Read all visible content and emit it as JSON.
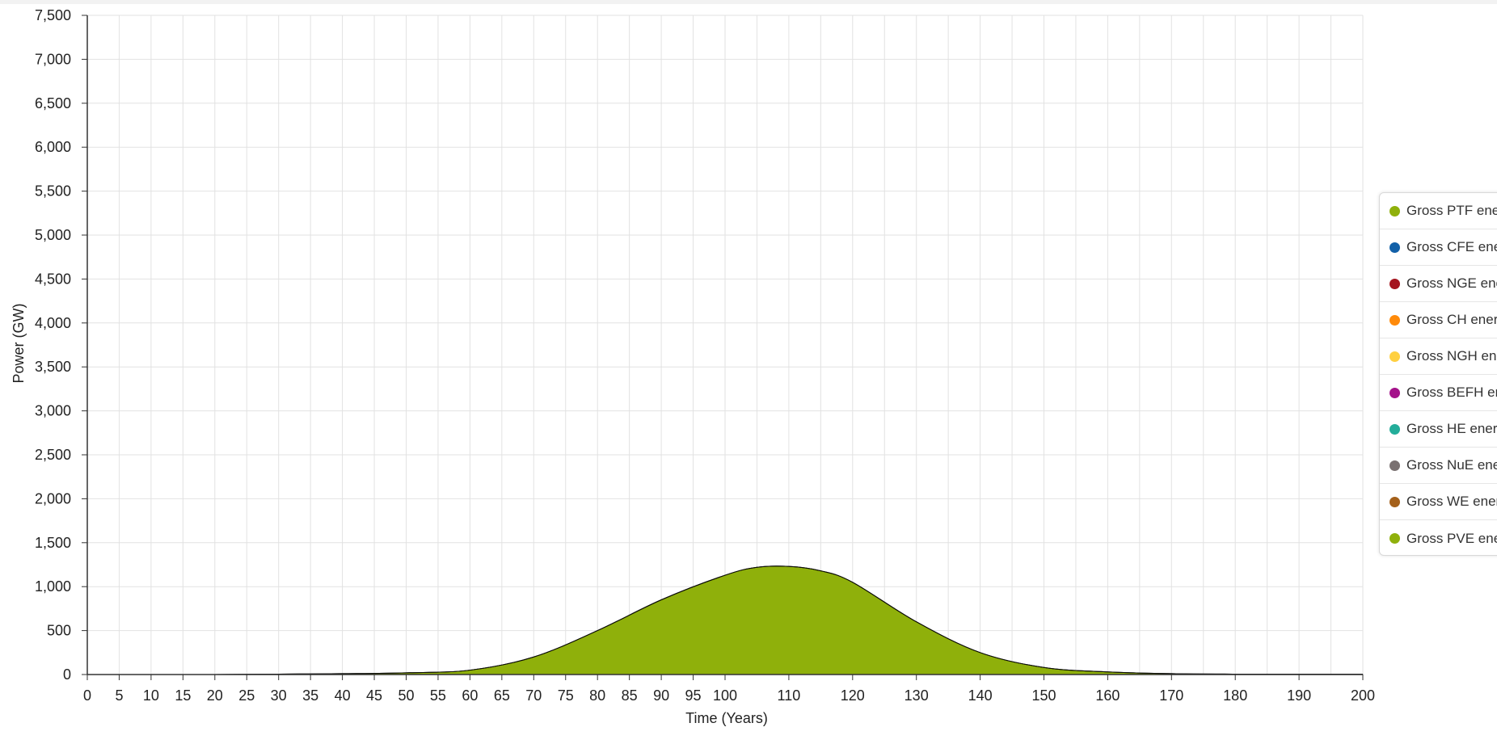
{
  "chart_data": {
    "type": "area",
    "stacked": true,
    "xlabel": "Time (Years)",
    "ylabel": "Power (GW)",
    "xlim": [
      0,
      200
    ],
    "ylim": [
      0,
      7500
    ],
    "x_ticks": [
      "0",
      "5",
      "10",
      "15",
      "20",
      "25",
      "30",
      "35",
      "40",
      "45",
      "50",
      "55",
      "60",
      "65",
      "70",
      "75",
      "80",
      "85",
      "90",
      "95",
      "100",
      "110",
      "120",
      "130",
      "140",
      "150",
      "160",
      "170",
      "180",
      "190",
      "200"
    ],
    "y_ticks": [
      "0",
      "500",
      "1,000",
      "1,500",
      "2,000",
      "2,500",
      "3,000",
      "3,500",
      "4,000",
      "4,500",
      "5,000",
      "5,500",
      "6,000",
      "6,500",
      "7,000",
      "7,500"
    ],
    "grid": true,
    "legend_position": "right",
    "x": [
      0,
      10,
      20,
      30,
      40,
      50,
      60,
      70,
      80,
      90,
      100,
      105,
      110,
      115,
      120,
      130,
      140,
      150,
      160,
      170,
      180,
      190,
      200
    ],
    "series": [
      {
        "name": "Gross PVE ene",
        "color": "#8fb00b",
        "values": [
          0,
          0,
          0,
          5,
          10,
          20,
          50,
          200,
          500,
          850,
          1130,
          1220,
          1230,
          1180,
          1050,
          600,
          250,
          80,
          30,
          10,
          5,
          5,
          5
        ]
      },
      {
        "name": "Gross WE ener",
        "color": "#a4601a",
        "values": [
          0,
          0,
          0,
          0,
          0,
          0,
          0,
          0,
          0,
          0,
          0,
          0,
          0,
          0,
          0,
          0,
          0,
          0,
          0,
          0,
          0,
          0,
          0
        ]
      },
      {
        "name": "Gross NuE ene",
        "color": "#7a7171",
        "values": [
          0,
          0,
          0,
          0,
          0,
          0,
          0,
          0,
          0,
          0,
          0,
          0,
          0,
          0,
          0,
          0,
          0,
          0,
          0,
          0,
          0,
          0,
          0
        ]
      },
      {
        "name": "Gross HE energ",
        "color": "#23ad9a",
        "values": [
          0,
          0,
          0,
          0,
          0,
          0,
          0,
          0,
          0,
          0,
          0,
          0,
          0,
          0,
          0,
          0,
          0,
          0,
          0,
          0,
          0,
          0,
          0
        ]
      },
      {
        "name": "Gross BEFH en",
        "color": "#a4118a",
        "values": [
          0,
          0,
          0,
          0,
          0,
          0,
          0,
          0,
          0,
          0,
          0,
          0,
          0,
          0,
          0,
          0,
          0,
          0,
          0,
          0,
          0,
          0,
          0
        ]
      },
      {
        "name": "Gross NGH ene",
        "color": "#ffd040",
        "values": [
          0,
          0,
          0,
          0,
          0,
          0,
          0,
          0,
          0,
          0,
          0,
          0,
          0,
          0,
          0,
          0,
          0,
          0,
          0,
          0,
          0,
          0,
          0
        ]
      },
      {
        "name": "Gross CH energ",
        "color": "#ff8a0a",
        "values": [
          0,
          0,
          0,
          0,
          0,
          0,
          0,
          0,
          0,
          0,
          0,
          0,
          0,
          0,
          0,
          0,
          0,
          0,
          0,
          0,
          0,
          0,
          0
        ]
      },
      {
        "name": "Gross NGE ene",
        "color": "#a4141e",
        "values": [
          0,
          0,
          0,
          0,
          0,
          0,
          0,
          0,
          0,
          0,
          0,
          0,
          0,
          0,
          0,
          0,
          0,
          0,
          0,
          0,
          0,
          0,
          0
        ]
      },
      {
        "name": "Gross CFE ene",
        "color": "#1260a8",
        "values": [
          0,
          0,
          0,
          0,
          0,
          0,
          0,
          0,
          0,
          0,
          0,
          0,
          0,
          0,
          0,
          0,
          0,
          0,
          0,
          0,
          0,
          0,
          0
        ]
      },
      {
        "name": "Gross PTF ene",
        "color": "#8fb00b",
        "values": [
          0,
          0,
          0,
          0,
          0,
          0,
          0,
          0,
          0,
          0,
          0,
          0,
          0,
          0,
          0,
          0,
          0,
          0,
          0,
          0,
          0,
          0,
          0
        ]
      }
    ]
  },
  "legend": {
    "items": [
      {
        "label": "Gross PTF ene",
        "color": "#8fb00b"
      },
      {
        "label": "Gross CFE ene",
        "color": "#1260a8"
      },
      {
        "label": "Gross NGE ene",
        "color": "#a4141e"
      },
      {
        "label": "Gross CH energ",
        "color": "#ff8a0a"
      },
      {
        "label": "Gross NGH ene",
        "color": "#ffd040"
      },
      {
        "label": "Gross BEFH en",
        "color": "#a4118a"
      },
      {
        "label": "Gross HE energ",
        "color": "#23ad9a"
      },
      {
        "label": "Gross NuE ene",
        "color": "#7a7171"
      },
      {
        "label": "Gross WE ener",
        "color": "#a4601a"
      },
      {
        "label": "Gross PVE ene",
        "color": "#8fb00b"
      }
    ]
  }
}
